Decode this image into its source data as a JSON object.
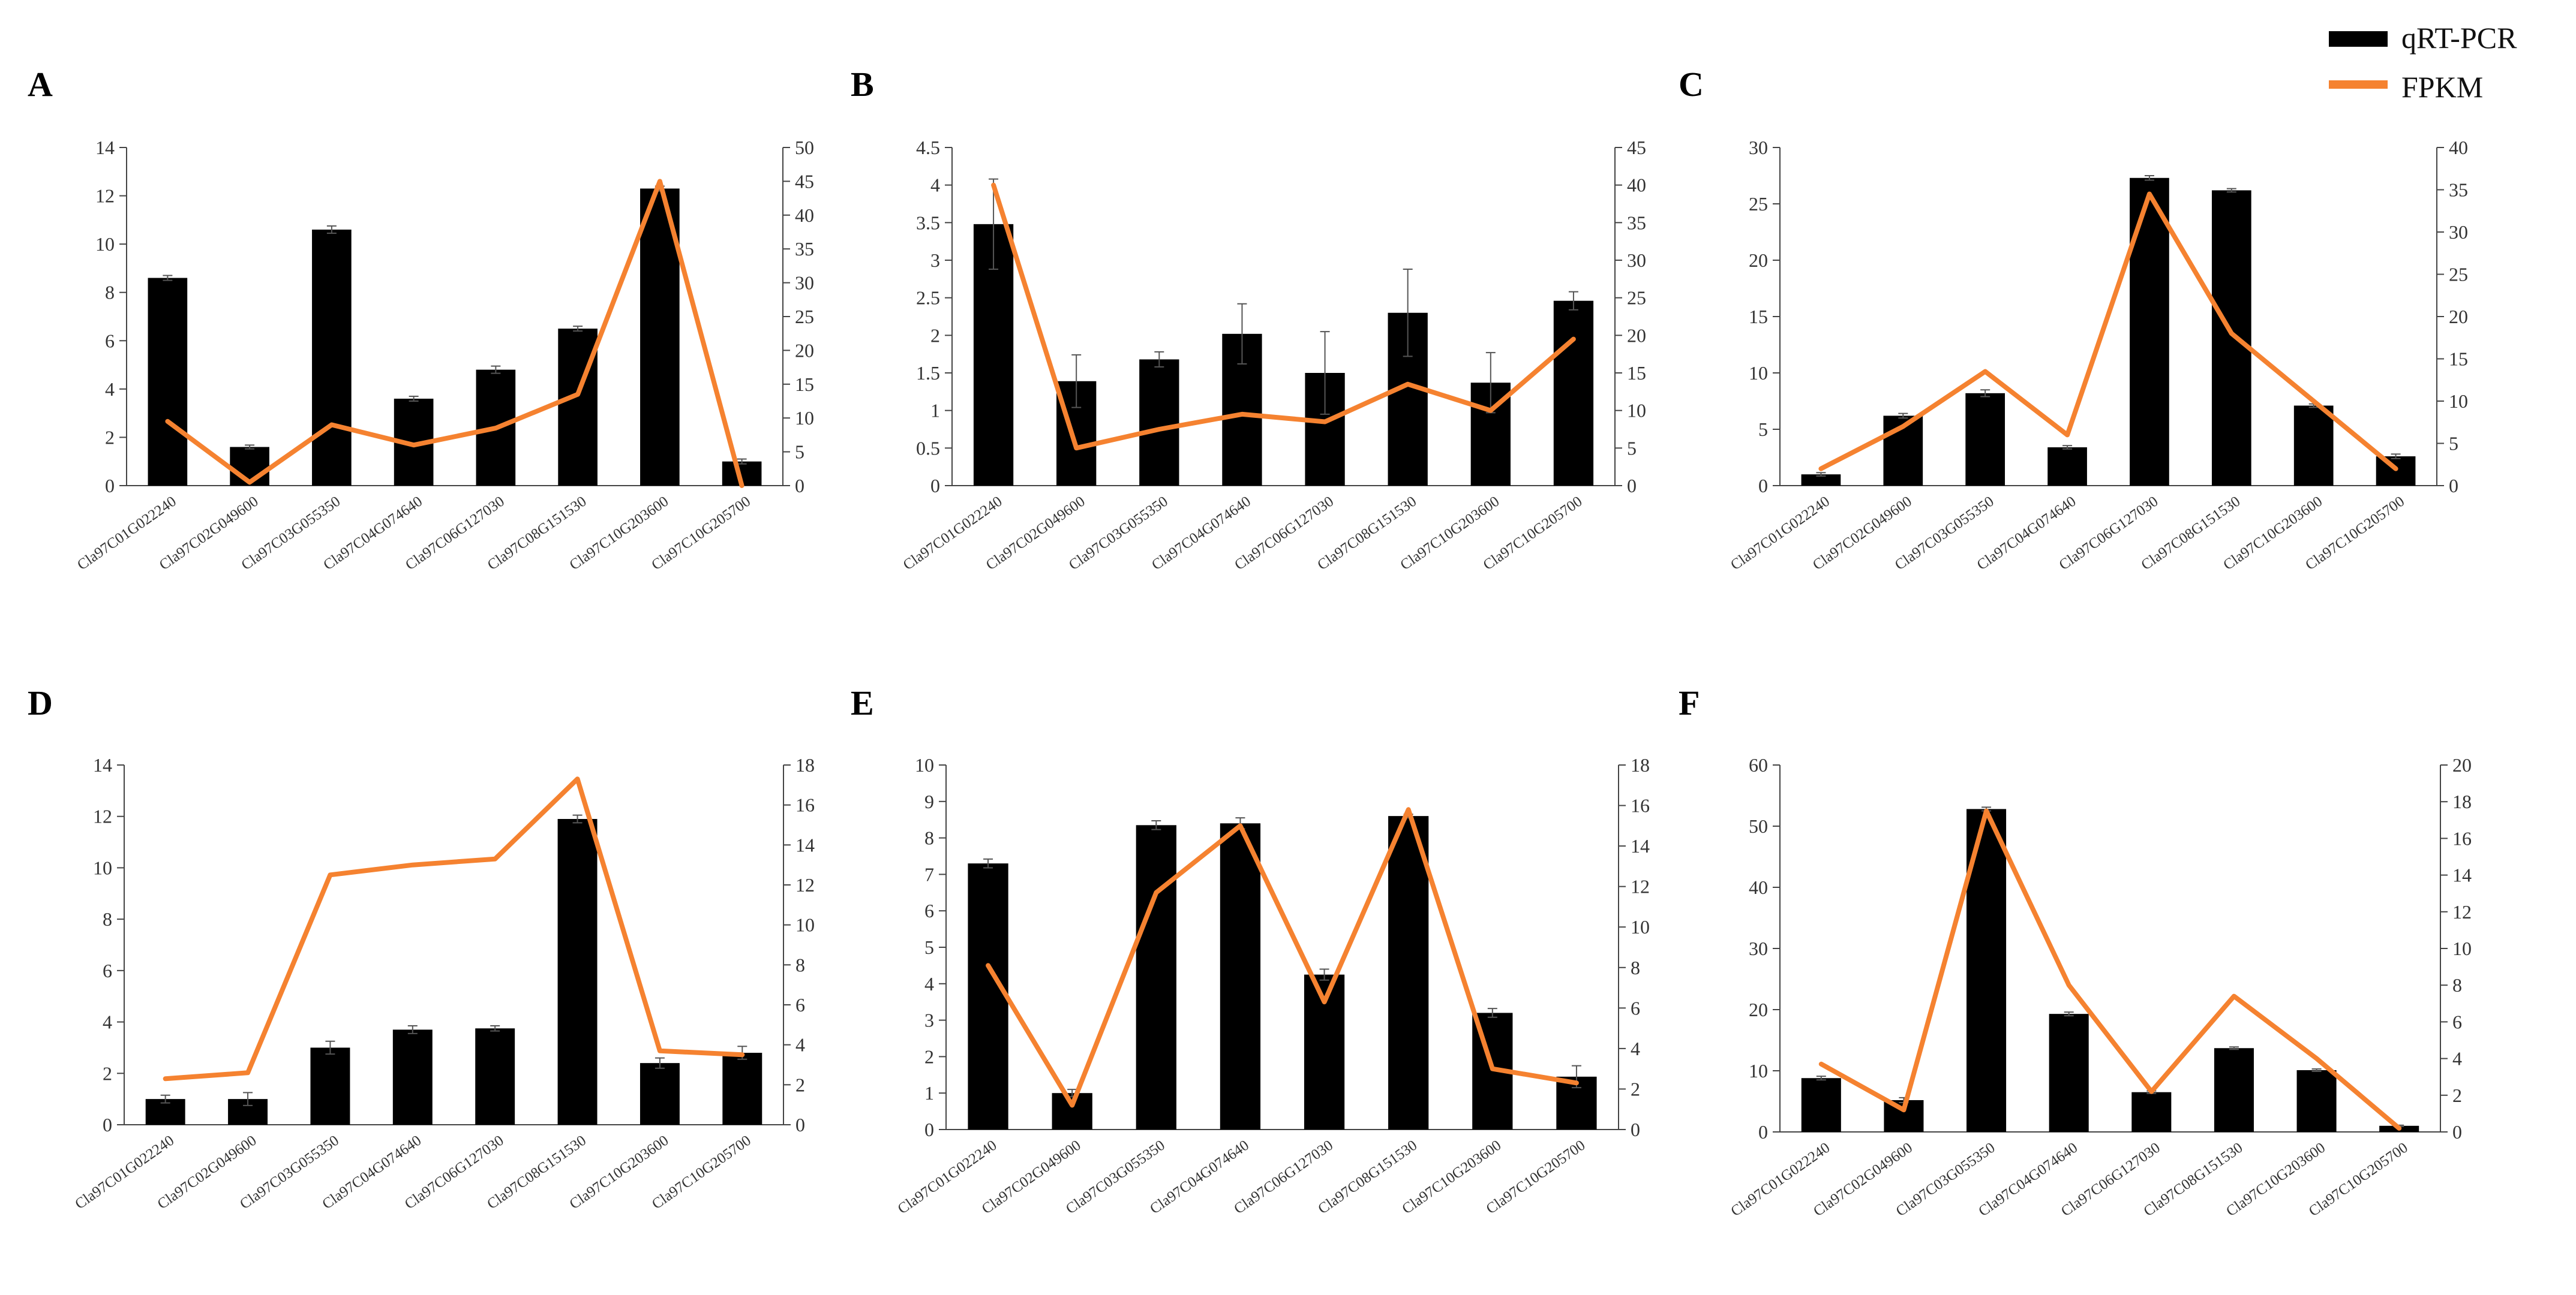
{
  "legend": {
    "items": [
      {
        "label": "qRT-PCR",
        "color": "#000000",
        "kind": "bar"
      },
      {
        "label": "FPKM",
        "color": "#F58230",
        "kind": "line"
      }
    ]
  },
  "chart_data": [
    {
      "panel": "A",
      "type": "bar+line",
      "categories": [
        "Cla97C01G022240",
        "Cla97C02G049600",
        "Cla97C03G055350",
        "Cla97C04G074640",
        "Cla97C06G127030",
        "Cla97C08G151530",
        "Cla97C10G203600",
        "Cla97C10G205700"
      ],
      "series": [
        {
          "name": "qRT-PCR",
          "axis": "left",
          "values": [
            8.6,
            1.6,
            10.6,
            3.6,
            4.8,
            6.5,
            12.3,
            1.0
          ],
          "errors": [
            0.1,
            0.08,
            0.15,
            0.1,
            0.15,
            0.1,
            0.1,
            0.1
          ]
        },
        {
          "name": "FPKM",
          "axis": "right",
          "values": [
            9.5,
            0.5,
            9,
            6,
            8.5,
            13.5,
            45,
            0
          ]
        }
      ],
      "left_axis": {
        "ylim": [
          0,
          14
        ],
        "ticks": [
          0,
          2,
          4,
          6,
          8,
          10,
          12,
          14
        ]
      },
      "right_axis": {
        "ylim": [
          0,
          50
        ],
        "ticks": [
          0,
          5,
          10,
          15,
          20,
          25,
          30,
          35,
          40,
          45,
          50
        ]
      }
    },
    {
      "panel": "B",
      "type": "bar+line",
      "categories": [
        "Cla97C01G022240",
        "Cla97C02G049600",
        "Cla97C03G055350",
        "Cla97C04G074640",
        "Cla97C06G127030",
        "Cla97C08G151530",
        "Cla97C10G203600",
        "Cla97C10G205700"
      ],
      "series": [
        {
          "name": "qRT-PCR",
          "axis": "left",
          "values": [
            3.48,
            1.39,
            1.68,
            2.02,
            1.5,
            2.3,
            1.37,
            2.46
          ],
          "errors": [
            0.6,
            0.35,
            0.1,
            0.4,
            0.55,
            0.58,
            0.4,
            0.12
          ]
        },
        {
          "name": "FPKM",
          "axis": "right",
          "values": [
            40,
            5,
            7.5,
            9.5,
            8.5,
            13.5,
            10,
            19.5
          ]
        }
      ],
      "left_axis": {
        "ylim": [
          0,
          4.5
        ],
        "ticks": [
          0,
          0.5,
          1,
          1.5,
          2,
          2.5,
          3,
          3.5,
          4,
          4.5
        ]
      },
      "right_axis": {
        "ylim": [
          0,
          45
        ],
        "ticks": [
          0,
          5,
          10,
          15,
          20,
          25,
          30,
          35,
          40,
          45
        ]
      }
    },
    {
      "panel": "C",
      "type": "bar+line",
      "categories": [
        "Cla97C01G022240",
        "Cla97C02G049600",
        "Cla97C03G055350",
        "Cla97C04G074640",
        "Cla97C06G127030",
        "Cla97C08G151530",
        "Cla97C10G203600",
        "Cla97C10G205700"
      ],
      "series": [
        {
          "name": "qRT-PCR",
          "axis": "left",
          "values": [
            1.0,
            6.2,
            8.2,
            3.4,
            27.3,
            26.2,
            7.1,
            2.6
          ],
          "errors": [
            0.15,
            0.2,
            0.3,
            0.15,
            0.2,
            0.15,
            0.15,
            0.2
          ]
        },
        {
          "name": "FPKM",
          "axis": "right",
          "values": [
            2,
            7,
            13.5,
            6,
            34.5,
            18,
            10,
            2
          ]
        }
      ],
      "left_axis": {
        "ylim": [
          0,
          30
        ],
        "ticks": [
          0,
          5,
          10,
          15,
          20,
          25,
          30
        ]
      },
      "right_axis": {
        "ylim": [
          0,
          40
        ],
        "ticks": [
          0,
          5,
          10,
          15,
          20,
          25,
          30,
          35,
          40
        ]
      }
    },
    {
      "panel": "D",
      "type": "bar+line",
      "categories": [
        "Cla97C01G022240",
        "Cla97C02G049600",
        "Cla97C03G055350",
        "Cla97C04G074640",
        "Cla97C06G127030",
        "Cla97C08G151530",
        "Cla97C10G203600",
        "Cla97C10G205700"
      ],
      "series": [
        {
          "name": "qRT-PCR",
          "axis": "left",
          "values": [
            1.0,
            1.0,
            3.0,
            3.7,
            3.75,
            11.9,
            2.4,
            2.8
          ],
          "errors": [
            0.15,
            0.25,
            0.25,
            0.15,
            0.1,
            0.15,
            0.2,
            0.25
          ]
        },
        {
          "name": "FPKM",
          "axis": "right",
          "values": [
            2.3,
            2.6,
            12.5,
            13,
            13.3,
            17.3,
            3.7,
            3.5
          ]
        }
      ],
      "left_axis": {
        "ylim": [
          0,
          14
        ],
        "ticks": [
          0,
          2,
          4,
          6,
          8,
          10,
          12,
          14
        ]
      },
      "right_axis": {
        "ylim": [
          0,
          18
        ],
        "ticks": [
          0,
          2,
          4,
          6,
          8,
          10,
          12,
          14,
          16,
          18
        ]
      }
    },
    {
      "panel": "E",
      "type": "bar+line",
      "categories": [
        "Cla97C01G022240",
        "Cla97C02G049600",
        "Cla97C03G055350",
        "Cla97C04G074640",
        "Cla97C06G127030",
        "Cla97C08G151530",
        "Cla97C10G203600",
        "Cla97C10G205700"
      ],
      "series": [
        {
          "name": "qRT-PCR",
          "axis": "left",
          "values": [
            7.3,
            1.0,
            8.35,
            8.4,
            4.25,
            8.6,
            3.2,
            1.45
          ],
          "errors": [
            0.12,
            0.1,
            0.12,
            0.15,
            0.15,
            0.05,
            0.12,
            0.3
          ]
        },
        {
          "name": "FPKM",
          "axis": "right",
          "values": [
            8.1,
            1.2,
            11.7,
            15,
            6.3,
            15.8,
            3,
            2.3
          ]
        }
      ],
      "left_axis": {
        "ylim": [
          0,
          10
        ],
        "ticks": [
          0,
          1,
          2,
          3,
          4,
          5,
          6,
          7,
          8,
          9,
          10
        ]
      },
      "right_axis": {
        "ylim": [
          0,
          18
        ],
        "ticks": [
          0,
          2,
          4,
          6,
          8,
          10,
          12,
          14,
          16,
          18
        ]
      }
    },
    {
      "panel": "F",
      "type": "bar+line",
      "categories": [
        "Cla97C01G022240",
        "Cla97C02G049600",
        "Cla97C03G055350",
        "Cla97C04G074640",
        "Cla97C06G127030",
        "Cla97C08G151530",
        "Cla97C10G203600",
        "Cla97C10G205700"
      ],
      "series": [
        {
          "name": "qRT-PCR",
          "axis": "left",
          "values": [
            8.8,
            5.2,
            52.8,
            19.3,
            6.5,
            13.7,
            10.1,
            1.0
          ],
          "errors": [
            0.3,
            0.4,
            0.3,
            0.3,
            0.2,
            0.2,
            0.2,
            0.1
          ]
        },
        {
          "name": "FPKM",
          "axis": "right",
          "values": [
            3.7,
            1.2,
            17.5,
            8,
            2.2,
            7.4,
            4,
            0.2
          ]
        }
      ],
      "left_axis": {
        "ylim": [
          0,
          60
        ],
        "ticks": [
          0,
          10,
          20,
          30,
          40,
          50,
          60
        ]
      },
      "right_axis": {
        "ylim": [
          0,
          20
        ],
        "ticks": [
          0,
          2,
          4,
          6,
          8,
          10,
          12,
          14,
          16,
          18,
          20
        ]
      }
    }
  ]
}
